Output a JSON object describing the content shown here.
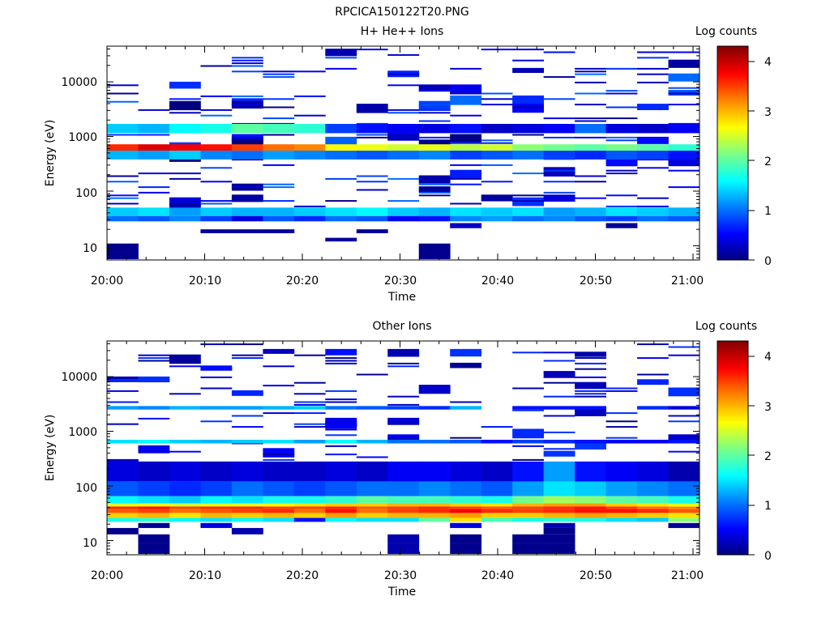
{
  "figure_title": "RPCICA150122T20.PNG",
  "colorbar_ticks": [
    "0",
    "1",
    "2",
    "3",
    "4"
  ],
  "colorbar_range": [
    0,
    4.3
  ],
  "colormap": [
    "#000080",
    "#0000ff",
    "#0080ff",
    "#00ffff",
    "#80ff80",
    "#ffff00",
    "#ff8000",
    "#ff0000",
    "#800000"
  ],
  "chart_data": [
    {
      "type": "heatmap",
      "title": "H+ He++ Ions",
      "xlabel": "Time",
      "ylabel": "Energy (eV)",
      "colorbar_label": "Log counts",
      "x_tick_labels": [
        "20:00",
        "20:10",
        "20:20",
        "20:30",
        "20:40",
        "20:50",
        "21:00"
      ],
      "y_tick_labels": [
        "10",
        "100",
        "1000",
        "10000"
      ],
      "ylim": [
        5.5,
        45000
      ],
      "y_scale": "log",
      "time_bins": 19,
      "features": [
        {
          "energy": [
            550,
            720
          ],
          "level": [
            3.6,
            3.9,
            3.8,
            3.7,
            3.5,
            3.3,
            3.2,
            2.7,
            2.6,
            2.5,
            2.6,
            2.4,
            2.5,
            2.2,
            2.1,
            2.0,
            2.1,
            2.0,
            1.8
          ]
        },
        {
          "energy": [
            380,
            550
          ],
          "level": [
            1.3,
            1.2,
            1.4,
            1.1,
            1.0,
            1.2,
            1.1,
            1.0,
            0.9,
            1.0,
            1.1,
            0.8,
            0.9,
            1.0,
            0.8,
            0.7,
            0.9,
            0.8,
            0.6
          ]
        },
        {
          "energy": [
            1150,
            1700
          ],
          "level": [
            1.4,
            1.3,
            1.6,
            1.7,
            2.0,
            1.9,
            1.8,
            0.8,
            0.6,
            0.5,
            0.4,
            0.6,
            0.3,
            0.4,
            0.5,
            1.0,
            0.4,
            0.3,
            0.5
          ]
        },
        {
          "energy": [
            35,
            50
          ],
          "level": [
            1.4,
            1.5,
            1.2,
            1.4,
            1.3,
            1.3,
            1.4,
            1.5,
            1.6,
            1.4,
            1.3,
            1.5,
            1.4,
            1.5,
            1.2,
            1.3,
            1.5,
            1.4,
            1.3
          ]
        },
        {
          "energy": [
            28,
            35
          ],
          "level": [
            1.0,
            0.9,
            1.1,
            0.8,
            0.4,
            0.9,
            0.7,
            1.0,
            0.9,
            0.5,
            0.6,
            1.1,
            1.2,
            1.0,
            1.1,
            0.9,
            0.8,
            1.0,
            0.9
          ]
        },
        {
          "energy": [
            8,
            11
          ],
          "level": [
            0.05,
            null,
            null,
            null,
            null,
            null,
            null,
            null,
            null,
            null,
            0.05,
            null,
            null,
            null,
            null,
            null,
            null,
            null,
            null
          ]
        },
        {
          "energy": [
            5.7,
            8
          ],
          "level": [
            0.05,
            null,
            null,
            null,
            null,
            null,
            null,
            null,
            null,
            null,
            0.05,
            null,
            null,
            null,
            null,
            null,
            null,
            null,
            null
          ]
        },
        {
          "energy": [
            12,
            14
          ],
          "level": [
            null,
            null,
            null,
            null,
            null,
            null,
            null,
            0.1,
            null,
            null,
            null,
            null,
            null,
            null,
            null,
            null,
            null,
            null,
            null
          ]
        },
        {
          "energy": [
            17,
            20
          ],
          "level": [
            null,
            null,
            null,
            0.1,
            0.1,
            0.1,
            null,
            null,
            0.1,
            null,
            null,
            null,
            null,
            null,
            null,
            null,
            null,
            null,
            null
          ]
        },
        {
          "energy": [
            21,
            26
          ],
          "level": [
            null,
            null,
            null,
            null,
            null,
            null,
            null,
            null,
            null,
            null,
            null,
            0.3,
            null,
            null,
            null,
            null,
            0.1,
            null,
            null
          ]
        }
      ],
      "sparse_density": 0.2,
      "sparse_min_energy": 50,
      "sparse_max_level": 1.0
    },
    {
      "type": "heatmap",
      "title": "Other Ions",
      "xlabel": "Time",
      "ylabel": "Energy (eV)",
      "colorbar_label": "Log counts",
      "x_tick_labels": [
        "20:00",
        "20:10",
        "20:20",
        "20:30",
        "20:40",
        "20:50",
        "21:00"
      ],
      "y_tick_labels": [
        "10",
        "100",
        "1000",
        "10000"
      ],
      "ylim": [
        5.5,
        45000
      ],
      "y_scale": "log",
      "time_bins": 19,
      "features": [
        {
          "energy": [
            2500,
            2900
          ],
          "level": [
            1.2,
            1.1,
            1.3,
            1.2,
            1.2,
            1.3,
            1.4,
            1.0,
            0.9,
            0.8,
            0.7,
            1.3,
            null,
            0.6,
            0.6,
            0.6,
            null,
            0.7,
            0.4
          ]
        },
        {
          "energy": [
            600,
            700
          ],
          "level": [
            1.5,
            1.6,
            1.4,
            1.3,
            1.4,
            1.5,
            1.2,
            1.6,
            1.3,
            1.0,
            1.0,
            0.9,
            0.6,
            0.8,
            0.7,
            0.6,
            0.5,
            0.5,
            0.6
          ]
        },
        {
          "energy": [
            120,
            280
          ],
          "level": [
            0.4,
            0.3,
            0.4,
            0.3,
            0.4,
            0.3,
            0.3,
            0.4,
            0.3,
            0.5,
            0.5,
            0.4,
            0.3,
            0.6,
            1.2,
            0.6,
            0.5,
            0.4,
            0.2
          ]
        },
        {
          "energy": [
            65,
            120
          ],
          "level": [
            0.9,
            0.8,
            0.7,
            0.8,
            1.0,
            0.9,
            0.8,
            0.9,
            1.0,
            1.0,
            1.1,
            1.0,
            0.9,
            1.2,
            1.5,
            1.4,
            1.2,
            1.1,
            1.0
          ]
        },
        {
          "energy": [
            48,
            65
          ],
          "level": [
            1.6,
            1.5,
            1.4,
            1.6,
            1.5,
            1.7,
            1.7,
            1.8,
            2.0,
            1.9,
            1.9,
            1.8,
            1.7,
            2.1,
            2.3,
            2.2,
            2.0,
            1.9,
            1.7
          ]
        },
        {
          "energy": [
            42,
            48
          ],
          "level": [
            2.6,
            2.7,
            2.5,
            2.6,
            2.6,
            2.7,
            2.8,
            2.9,
            2.9,
            3.0,
            3.0,
            2.9,
            2.8,
            3.0,
            3.1,
            3.1,
            2.9,
            2.8,
            2.6
          ]
        },
        {
          "energy": [
            38,
            42
          ],
          "level": [
            3.6,
            3.7,
            3.5,
            3.6,
            3.6,
            3.5,
            3.5,
            3.6,
            3.4,
            3.5,
            3.6,
            3.5,
            3.4,
            3.5,
            3.6,
            3.7,
            3.5,
            3.3,
            3.2
          ]
        },
        {
          "energy": [
            32,
            38
          ],
          "level": [
            3.4,
            3.5,
            3.3,
            3.4,
            3.5,
            3.6,
            3.3,
            3.7,
            3.3,
            3.5,
            3.6,
            3.8,
            3.6,
            3.5,
            3.6,
            3.7,
            3.7,
            3.6,
            3.4
          ]
        },
        {
          "energy": [
            26,
            32
          ],
          "level": [
            2.9,
            3.0,
            2.8,
            3.0,
            2.9,
            3.0,
            2.9,
            3.1,
            2.9,
            3.0,
            3.0,
            3.1,
            2.9,
            2.9,
            3.0,
            3.1,
            3.0,
            2.9,
            2.8
          ]
        },
        {
          "energy": [
            22,
            26
          ],
          "level": [
            1.7,
            1.8,
            1.6,
            1.5,
            1.6,
            1.5,
            0.6,
            1.6,
            1.5,
            1.5,
            2.0,
            2.8,
            1.9,
            1.7,
            1.8,
            1.7,
            1.5,
            1.4,
            2.2
          ]
        },
        {
          "energy": [
            17,
            21
          ],
          "level": [
            null,
            0.1,
            null,
            0.4,
            null,
            null,
            null,
            null,
            null,
            null,
            null,
            0.4,
            null,
            null,
            0.2,
            null,
            null,
            null,
            0.1
          ]
        },
        {
          "energy": [
            13,
            17
          ],
          "level": [
            0.05,
            null,
            null,
            null,
            0.2,
            null,
            null,
            null,
            null,
            null,
            null,
            null,
            null,
            null,
            0.05,
            null,
            null,
            null,
            null
          ]
        },
        {
          "energy": [
            9,
            13
          ],
          "level": [
            null,
            0.05,
            null,
            null,
            null,
            null,
            null,
            null,
            null,
            0.2,
            null,
            0.05,
            null,
            0.05,
            0.05,
            null,
            null,
            null,
            null
          ]
        },
        {
          "energy": [
            5.7,
            9
          ],
          "level": [
            null,
            0.05,
            null,
            null,
            null,
            null,
            null,
            null,
            null,
            0.2,
            null,
            0.05,
            null,
            0.05,
            0.05,
            null,
            null,
            null,
            null
          ]
        }
      ],
      "sparse_density": 0.14,
      "sparse_min_energy": 280,
      "sparse_max_level": 0.8
    }
  ]
}
